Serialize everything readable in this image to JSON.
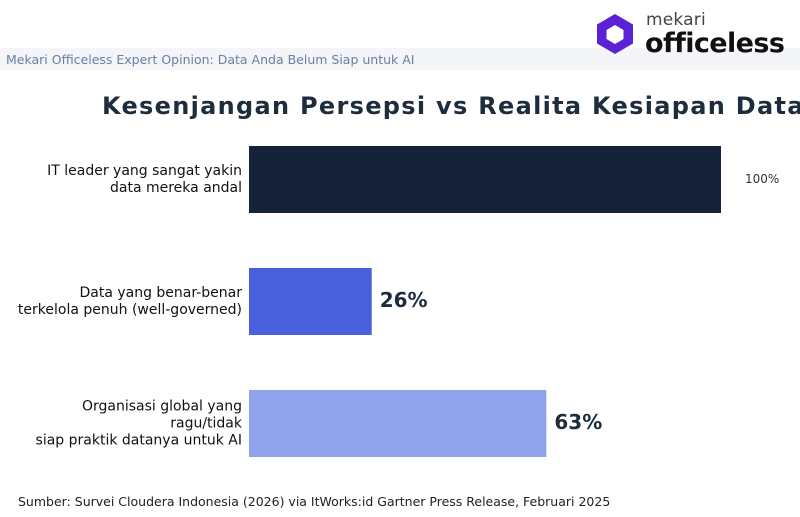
{
  "header": {
    "subtitle": "Mekari Officeless Expert Opinion: Data Anda Belum Siap untuk AI",
    "logo_top": "mekari",
    "logo_bottom": "officeless",
    "brand_color": "#5b21d6"
  },
  "footer": {
    "source": "Sumber: Survei Cloudera Indonesia (2026) via ItWorks:id Gartner Press Release, Februari 2025"
  },
  "chart_data": {
    "type": "bar",
    "orientation": "horizontal",
    "title": "Kesenjangan Persepsi vs Realita Kesiapan Data",
    "categories": [
      [
        "IT leader yang sangat yakin",
        "data mereka andal"
      ],
      [
        "Data yang benar-benar",
        "terkelola penuh (well-governed)"
      ],
      [
        "Organisasi global yang",
        "ragu/tidak",
        "siap praktik datanya untuk AI"
      ]
    ],
    "values": [
      100,
      26,
      63
    ],
    "value_labels": [
      "100%",
      "26%",
      "63%"
    ],
    "colors": [
      "#15223a",
      "#4a5fdc",
      "#8fa2ec"
    ],
    "xlim": [
      0,
      100
    ],
    "grid": false,
    "legend": "none"
  }
}
